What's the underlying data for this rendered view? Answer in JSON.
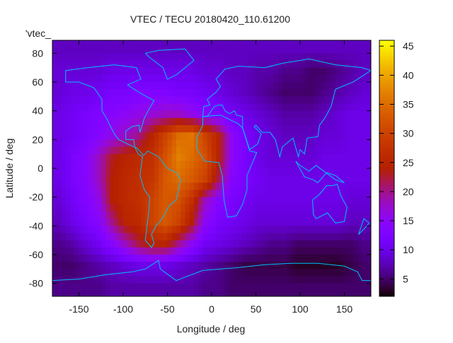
{
  "chart_data": {
    "type": "heatmap",
    "title": "VTEC / TECU 20180420_110.61200",
    "key_label": "'vtec_",
    "xlabel": "Longitude / deg",
    "ylabel": "Latitude / deg",
    "xlim": [
      -180,
      180
    ],
    "ylim": [
      -89,
      89
    ],
    "xticks": [
      -150,
      -100,
      -50,
      0,
      50,
      100,
      150
    ],
    "yticks": [
      80,
      60,
      40,
      20,
      0,
      -20,
      -40,
      -60,
      -80
    ],
    "cbrange": [
      2,
      46
    ],
    "cbticks": [
      5,
      10,
      15,
      20,
      25,
      30,
      35,
      40,
      45
    ],
    "colormap": "gnuplot rgbformulae 7,5,15 (black-purple-red-orange-yellow)",
    "coastline_color": "#00bfff",
    "grid": false,
    "lon_centers": [
      -172.5,
      -157.5,
      -142.5,
      -127.5,
      -112.5,
      -97.5,
      -82.5,
      -67.5,
      -52.5,
      -37.5,
      -22.5,
      -7.5,
      7.5,
      22.5,
      37.5,
      52.5,
      67.5,
      82.5,
      97.5,
      112.5,
      127.5,
      142.5,
      157.5,
      172.5
    ],
    "lat_centers": [
      82.5,
      67.5,
      52.5,
      37.5,
      22.5,
      7.5,
      -7.5,
      -22.5,
      -37.5,
      -52.5,
      -67.5,
      -82.5
    ],
    "values": [
      [
        8,
        8,
        8,
        8,
        8,
        8,
        8,
        8,
        8,
        8,
        8,
        8,
        8,
        8,
        8,
        8,
        8,
        8,
        8,
        8,
        8,
        8,
        8,
        8
      ],
      [
        9,
        9,
        9,
        9,
        10,
        10,
        10,
        10,
        10,
        10,
        10,
        9,
        9,
        8,
        8,
        7,
        7,
        6,
        6,
        5,
        5,
        6,
        7,
        8
      ],
      [
        9,
        10,
        10,
        11,
        12,
        12,
        13,
        13,
        13,
        12,
        12,
        11,
        10,
        9,
        8,
        7,
        6,
        5,
        5,
        5,
        6,
        7,
        8,
        9
      ],
      [
        10,
        11,
        12,
        13,
        14,
        15,
        16,
        17,
        18,
        18,
        16,
        14,
        12,
        11,
        10,
        9,
        8,
        7,
        7,
        7,
        8,
        9,
        10,
        10
      ],
      [
        10,
        11,
        12,
        14,
        16,
        18,
        20,
        25,
        30,
        35,
        36,
        30,
        25,
        15,
        12,
        10,
        9,
        8,
        8,
        8,
        9,
        9,
        10,
        10
      ],
      [
        10,
        12,
        14,
        18,
        23,
        25,
        26,
        27,
        32,
        37,
        35,
        32,
        25,
        15,
        12,
        10,
        9,
        9,
        9,
        9,
        10,
        10,
        10,
        10
      ],
      [
        10,
        12,
        14,
        18,
        24,
        26,
        27,
        28,
        33,
        35,
        33,
        30,
        22,
        14,
        12,
        11,
        10,
        10,
        10,
        10,
        10,
        10,
        10,
        10
      ],
      [
        9,
        11,
        13,
        16,
        24,
        26,
        27,
        30,
        33,
        32,
        27,
        18,
        14,
        12,
        11,
        10,
        10,
        10,
        10,
        10,
        10,
        10,
        9,
        9
      ],
      [
        8,
        10,
        12,
        14,
        20,
        25,
        26,
        30,
        33,
        30,
        24,
        15,
        12,
        11,
        10,
        9,
        9,
        9,
        9,
        9,
        9,
        9,
        8,
        8
      ],
      [
        6,
        7,
        9,
        11,
        14,
        18,
        22,
        25,
        25,
        20,
        15,
        11,
        10,
        9,
        8,
        7,
        6,
        6,
        5,
        5,
        5,
        5,
        5,
        6
      ],
      [
        5,
        5,
        6,
        7,
        8,
        9,
        10,
        10,
        10,
        9,
        8,
        7,
        6,
        5,
        4,
        4,
        4,
        4,
        3,
        3,
        3,
        3,
        4,
        5
      ],
      [
        6,
        6,
        6,
        6,
        7,
        7,
        7,
        7,
        7,
        7,
        7,
        6,
        6,
        5,
        5,
        5,
        5,
        5,
        5,
        5,
        5,
        5,
        5,
        5
      ]
    ]
  }
}
